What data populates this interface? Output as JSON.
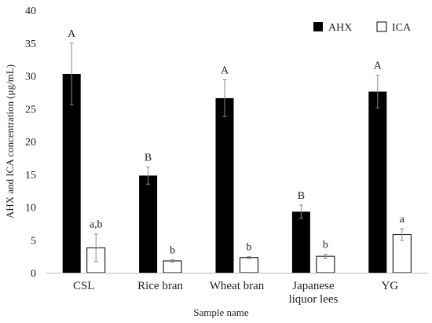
{
  "chart_data": {
    "type": "bar",
    "xlabel": "Sample name",
    "ylabel": "AHX and ICA concentration (μg/mL)",
    "ylim": [
      0,
      40
    ],
    "yticks": [
      "0",
      "5",
      "10",
      "15",
      "20",
      "25",
      "30",
      "35",
      "40"
    ],
    "grid": false,
    "legend_position": "top-right",
    "categories": [
      [
        "CSL"
      ],
      [
        "Rice bran"
      ],
      [
        "Wheat bran"
      ],
      [
        "Japanese",
        "liquor lees"
      ],
      [
        "YG"
      ]
    ],
    "series": [
      {
        "name": "AHX",
        "color": "#000000",
        "fill": "solid",
        "values": [
          30.3,
          14.8,
          26.6,
          9.3,
          27.6
        ],
        "errors": [
          4.7,
          1.3,
          2.8,
          1.0,
          2.5
        ],
        "labels": [
          "A",
          "B",
          "A",
          "B",
          "A"
        ]
      },
      {
        "name": "ICA",
        "color": "#000000",
        "fill": "hollow",
        "values": [
          3.8,
          1.8,
          2.3,
          2.5,
          5.8
        ],
        "errors": [
          2.1,
          0.2,
          0.15,
          0.3,
          0.9
        ],
        "labels": [
          "a,b",
          "b",
          "b",
          "b",
          "a"
        ]
      }
    ]
  }
}
